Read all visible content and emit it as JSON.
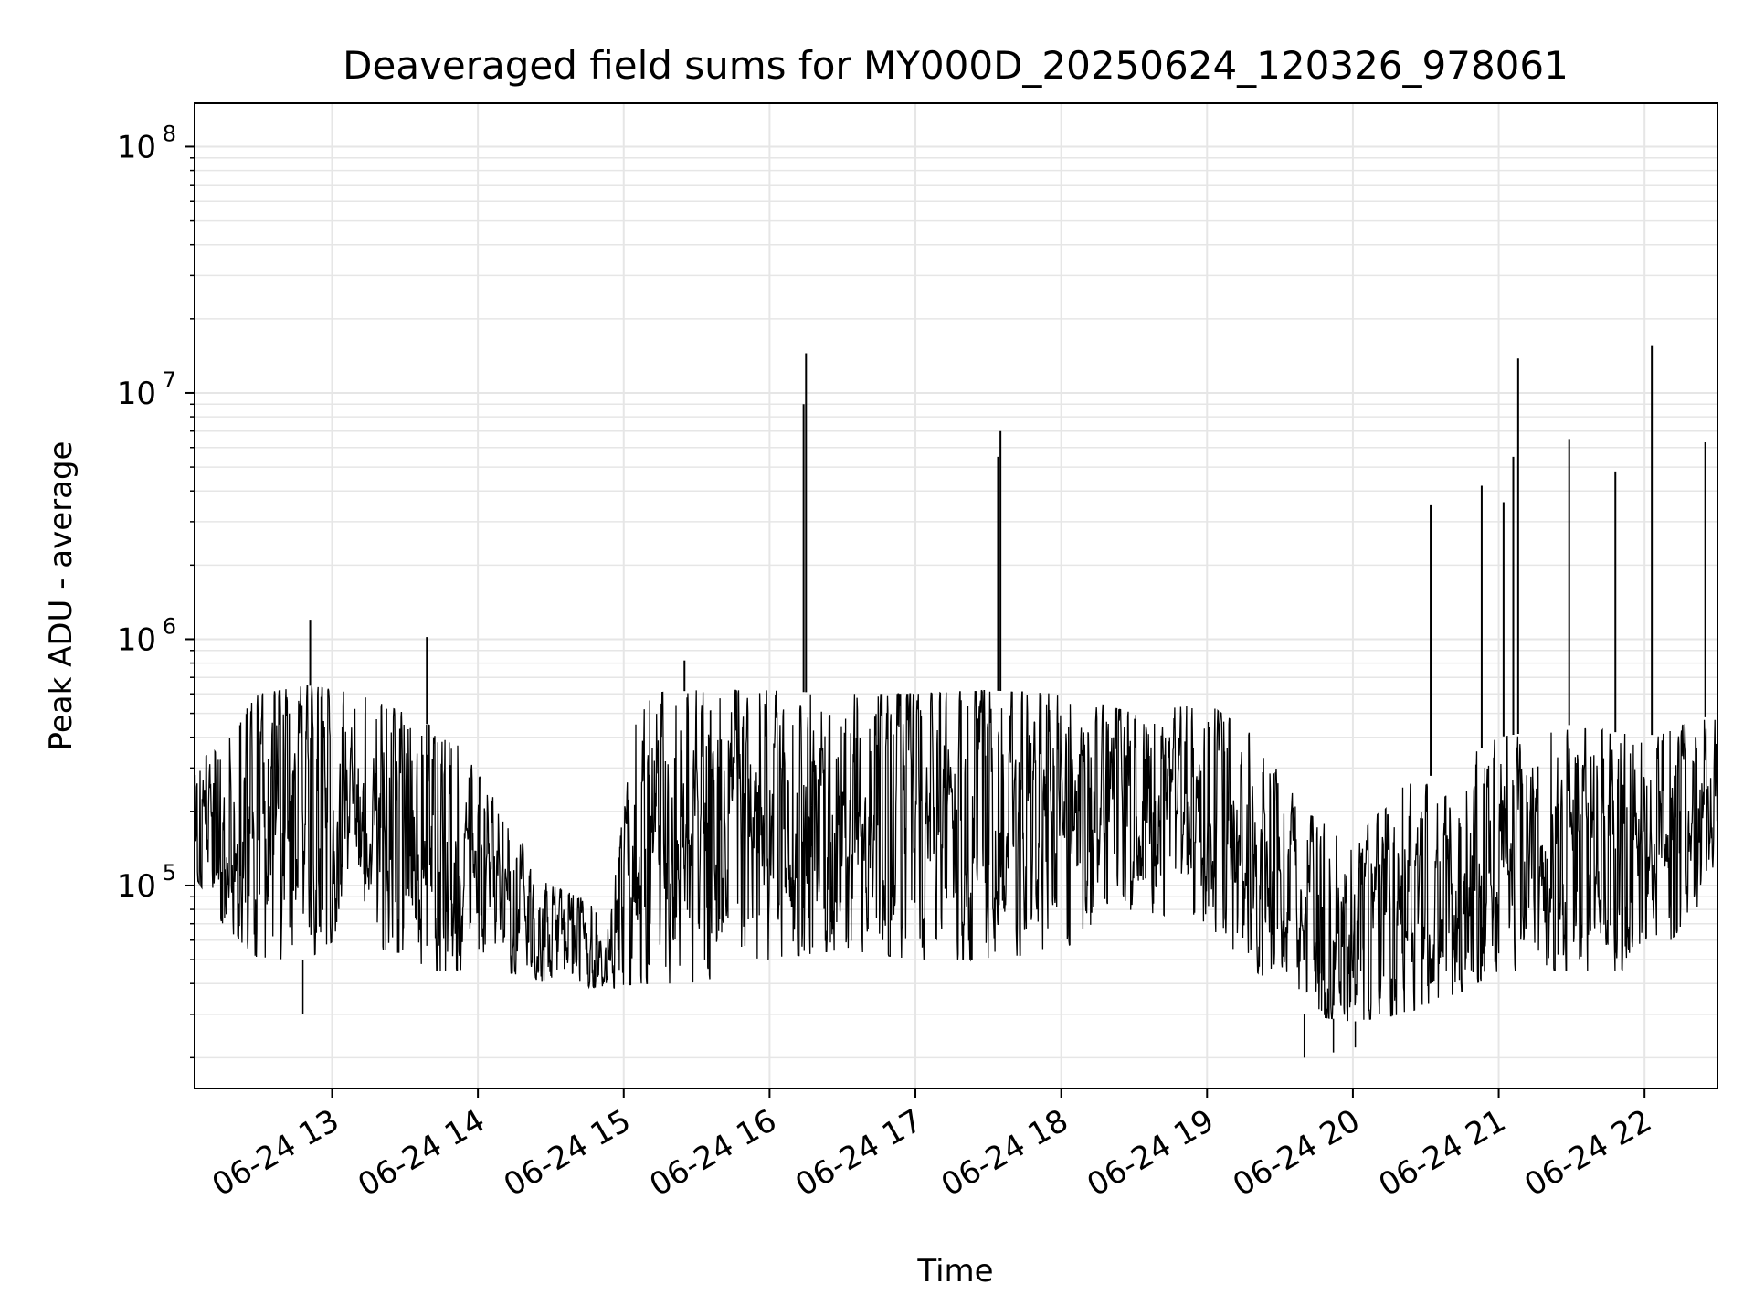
{
  "chart_data": {
    "type": "line",
    "title": "Deaveraged field sums for MY000D_20250624_120326_978061",
    "xlabel": "Time",
    "ylabel": "Peak ADU - average",
    "yscale": "log",
    "ylim": [
      15000,
      150000000
    ],
    "xlim": [
      "2025-06-24T12:03:26",
      "2025-06-24T22:30:00"
    ],
    "grid": true,
    "line_color": "#000000",
    "grid_color": "#e6e6e6",
    "x_ticks": [
      {
        "t": "2025-06-24T13:00:00",
        "label": "06-24 13"
      },
      {
        "t": "2025-06-24T14:00:00",
        "label": "06-24 14"
      },
      {
        "t": "2025-06-24T15:00:00",
        "label": "06-24 15"
      },
      {
        "t": "2025-06-24T16:00:00",
        "label": "06-24 16"
      },
      {
        "t": "2025-06-24T17:00:00",
        "label": "06-24 17"
      },
      {
        "t": "2025-06-24T18:00:00",
        "label": "06-24 18"
      },
      {
        "t": "2025-06-24T19:00:00",
        "label": "06-24 19"
      },
      {
        "t": "2025-06-24T20:00:00",
        "label": "06-24 20"
      },
      {
        "t": "2025-06-24T21:00:00",
        "label": "06-24 21"
      },
      {
        "t": "2025-06-24T22:00:00",
        "label": "06-24 22"
      }
    ],
    "y_ticks": [
      {
        "v": 100000,
        "base": "10",
        "exp": "5"
      },
      {
        "v": 1000000,
        "base": "10",
        "exp": "6"
      },
      {
        "v": 10000000,
        "base": "10",
        "exp": "7"
      },
      {
        "v": 100000000,
        "base": "10",
        "exp": "8"
      }
    ],
    "envelope": [
      {
        "t": "2025-06-24T12:03:26",
        "low": 110000,
        "high": 300000
      },
      {
        "t": "2025-06-24T12:15:00",
        "low": 70000,
        "high": 400000
      },
      {
        "t": "2025-06-24T12:30:00",
        "low": 50000,
        "high": 600000
      },
      {
        "t": "2025-06-24T12:50:00",
        "low": 50000,
        "high": 650000
      },
      {
        "t": "2025-06-24T13:10:00",
        "low": 70000,
        "high": 600000
      },
      {
        "t": "2025-06-24T13:30:00",
        "low": 45000,
        "high": 500000
      },
      {
        "t": "2025-06-24T13:50:00",
        "low": 45000,
        "high": 400000
      },
      {
        "t": "2025-06-24T14:10:00",
        "low": 45000,
        "high": 200000
      },
      {
        "t": "2025-06-24T14:30:00",
        "low": 40000,
        "high": 100000
      },
      {
        "t": "2025-06-24T14:55:00",
        "low": 38000,
        "high": 80000
      },
      {
        "t": "2025-06-24T15:05:00",
        "low": 40000,
        "high": 600000
      },
      {
        "t": "2025-06-24T15:30:00",
        "low": 40000,
        "high": 620000
      },
      {
        "t": "2025-06-24T16:00:00",
        "low": 50000,
        "high": 620000
      },
      {
        "t": "2025-06-24T16:30:00",
        "low": 55000,
        "high": 600000
      },
      {
        "t": "2025-06-24T17:00:00",
        "low": 50000,
        "high": 600000
      },
      {
        "t": "2025-06-24T17:30:00",
        "low": 50000,
        "high": 620000
      },
      {
        "t": "2025-06-24T18:00:00",
        "low": 55000,
        "high": 600000
      },
      {
        "t": "2025-06-24T18:30:00",
        "low": 80000,
        "high": 500000
      },
      {
        "t": "2025-06-24T19:00:00",
        "low": 70000,
        "high": 550000
      },
      {
        "t": "2025-06-24T19:20:00",
        "low": 45000,
        "high": 400000
      },
      {
        "t": "2025-06-24T19:40:00",
        "low": 30000,
        "high": 200000
      },
      {
        "t": "2025-06-24T20:00:00",
        "low": 28000,
        "high": 150000
      },
      {
        "t": "2025-06-24T20:20:00",
        "low": 30000,
        "high": 250000
      },
      {
        "t": "2025-06-24T20:40:00",
        "low": 35000,
        "high": 300000
      },
      {
        "t": "2025-06-24T21:00:00",
        "low": 45000,
        "high": 400000
      },
      {
        "t": "2025-06-24T21:30:00",
        "low": 45000,
        "high": 450000
      },
      {
        "t": "2025-06-24T22:00:00",
        "low": 45000,
        "high": 400000
      },
      {
        "t": "2025-06-24T22:30:00",
        "low": 100000,
        "high": 500000
      }
    ],
    "spikes": [
      {
        "t": "2025-06-24T12:51:00",
        "v": 1200000
      },
      {
        "t": "2025-06-24T13:39:00",
        "v": 1020000
      },
      {
        "t": "2025-06-24T15:25:00",
        "v": 820000
      },
      {
        "t": "2025-06-24T16:14:00",
        "v": 9000000
      },
      {
        "t": "2025-06-24T16:15:00",
        "v": 14500000
      },
      {
        "t": "2025-06-24T17:34:00",
        "v": 5500000
      },
      {
        "t": "2025-06-24T17:35:00",
        "v": 7000000
      },
      {
        "t": "2025-06-24T20:32:00",
        "v": 3500000
      },
      {
        "t": "2025-06-24T20:53:00",
        "v": 4200000
      },
      {
        "t": "2025-06-24T21:02:00",
        "v": 3600000
      },
      {
        "t": "2025-06-24T21:06:00",
        "v": 5500000
      },
      {
        "t": "2025-06-24T21:08:00",
        "v": 13800000
      },
      {
        "t": "2025-06-24T21:29:00",
        "v": 6500000
      },
      {
        "t": "2025-06-24T21:48:00",
        "v": 4800000
      },
      {
        "t": "2025-06-24T22:03:00",
        "v": 15500000
      },
      {
        "t": "2025-06-24T22:25:00",
        "v": 6300000
      }
    ],
    "min_dips": [
      {
        "t": "2025-06-24T19:40:00",
        "v": 20000
      },
      {
        "t": "2025-06-24T19:52:00",
        "v": 21000
      },
      {
        "t": "2025-06-24T20:01:00",
        "v": 22000
      },
      {
        "t": "2025-06-24T12:48:00",
        "v": 30000
      }
    ]
  }
}
